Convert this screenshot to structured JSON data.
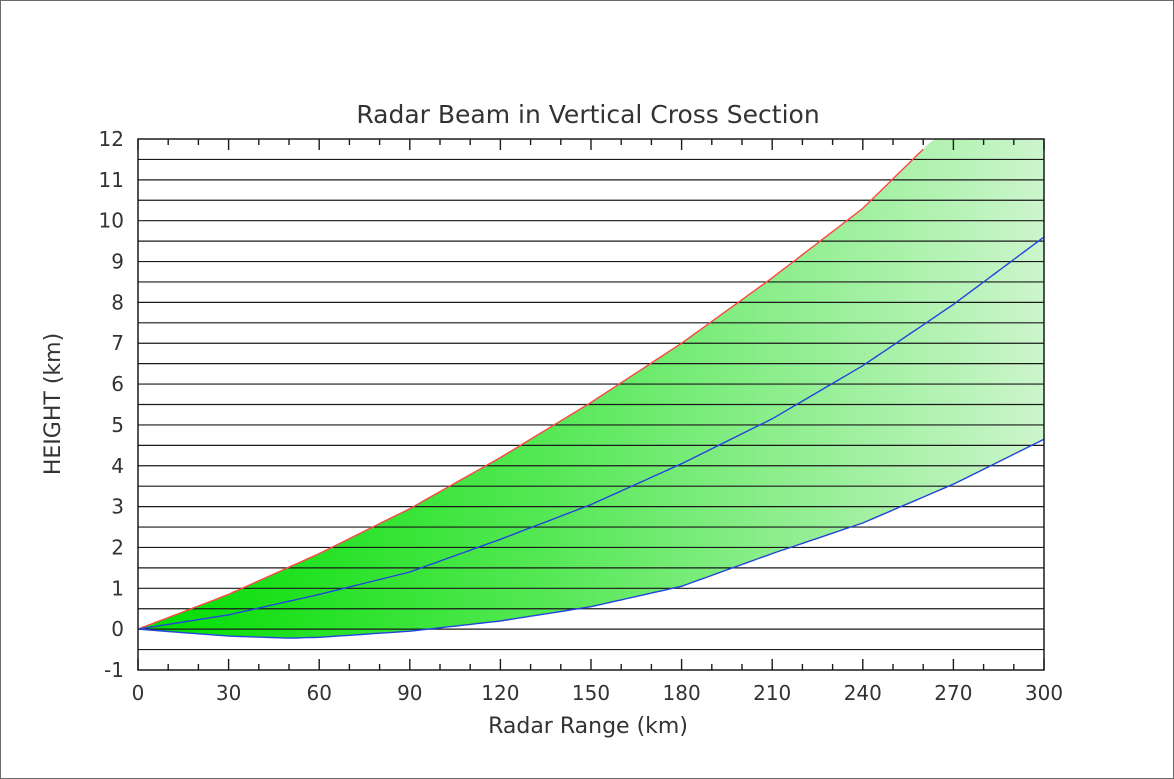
{
  "chart_data": {
    "type": "area",
    "title": "Radar Beam in Vertical Cross Section",
    "xlabel": "Radar Range (km)",
    "ylabel": "HEIGHT (km)",
    "xlim": [
      0,
      300
    ],
    "ylim": [
      -1,
      12
    ],
    "xticks": [
      "0",
      "30",
      "60",
      "90",
      "120",
      "150",
      "180",
      "210",
      "240",
      "270",
      "300"
    ],
    "yticks": [
      "-1",
      "0",
      "1",
      "2",
      "3",
      "4",
      "5",
      "6",
      "7",
      "8",
      "9",
      "10",
      "11",
      "12"
    ],
    "grid": "horizontal every 0.5 km",
    "series": [
      {
        "role": "beam-top",
        "color": "#ff4444",
        "x": [
          0,
          30,
          60,
          90,
          120,
          150,
          180,
          210,
          240,
          260
        ],
        "y": [
          0,
          0.85,
          1.85,
          2.95,
          4.2,
          5.55,
          7.0,
          8.6,
          10.3,
          11.75
        ]
      },
      {
        "role": "beam-center",
        "color": "#2244dd",
        "x": [
          0,
          30,
          60,
          90,
          120,
          150,
          180,
          210,
          240,
          270,
          300
        ],
        "y": [
          0,
          0.35,
          0.85,
          1.4,
          2.2,
          3.05,
          4.05,
          5.15,
          6.45,
          7.95,
          9.6
        ]
      },
      {
        "role": "beam-bottom",
        "color": "#2244dd",
        "x": [
          0,
          30,
          50,
          60,
          90,
          120,
          150,
          180,
          210,
          240,
          270,
          300
        ],
        "y": [
          0,
          -0.17,
          -0.22,
          -0.2,
          -0.05,
          0.2,
          0.55,
          1.05,
          1.85,
          2.6,
          3.55,
          4.65
        ]
      }
    ],
    "colors": {
      "fill_near": "#00dd00",
      "fill_far": "#ccf5cc",
      "grid": "#1a1a1a"
    }
  }
}
